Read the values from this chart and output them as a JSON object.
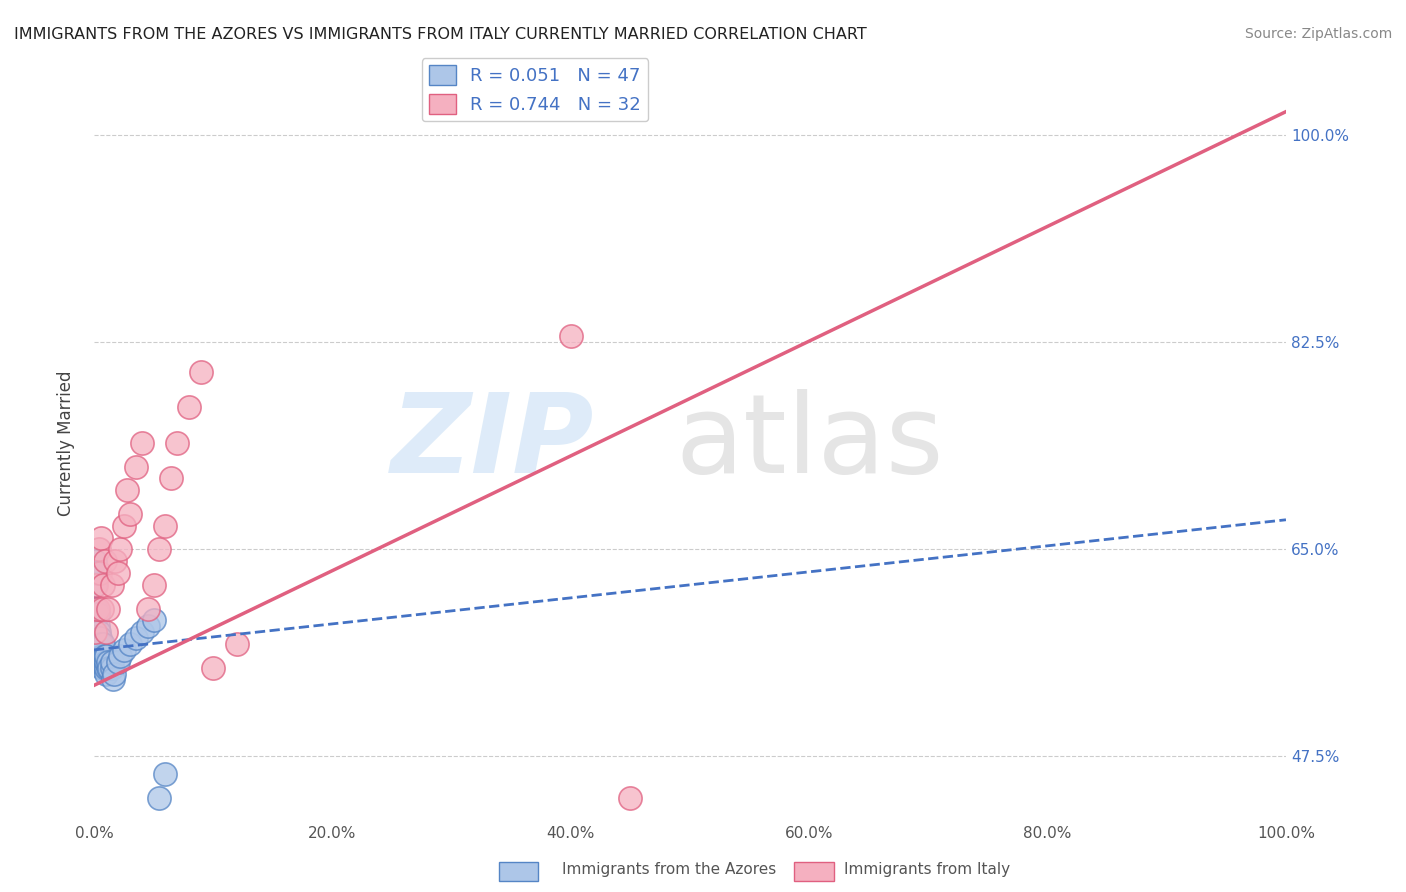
{
  "title": "IMMIGRANTS FROM THE AZORES VS IMMIGRANTS FROM ITALY CURRENTLY MARRIED CORRELATION CHART",
  "source": "Source: ZipAtlas.com",
  "ylabel": "Currently Married",
  "legend_r1": "R = 0.051",
  "legend_n1": "N = 47",
  "legend_r2": "R = 0.744",
  "legend_n2": "N = 32",
  "color_azores_fill": "#adc6e8",
  "color_azores_edge": "#5585c5",
  "color_italy_fill": "#f5b0c0",
  "color_italy_edge": "#e06080",
  "color_azores_line": "#4472c4",
  "color_italy_line": "#e06080",
  "color_text_blue": "#4472c4",
  "color_grid": "#cccccc",
  "xlim": [
    0.0,
    1.0
  ],
  "ylim": [
    0.42,
    1.06
  ],
  "yticks": [
    0.475,
    0.65,
    0.825,
    1.0
  ],
  "ytick_labels": [
    "47.5%",
    "65.0%",
    "82.5%",
    "100.0%"
  ],
  "xtick_labels": [
    "0.0%",
    "20.0%",
    "40.0%",
    "60.0%",
    "80.0%",
    "100.0%"
  ],
  "xticks": [
    0.0,
    0.2,
    0.4,
    0.6,
    0.8,
    1.0
  ],
  "bottom_labels": [
    "Immigrants from the Azores",
    "Immigrants from Italy"
  ],
  "azores_trend": [
    0.0,
    1.0,
    0.565,
    0.675
  ],
  "italy_trend": [
    0.0,
    1.0,
    0.535,
    1.02
  ],
  "azores_x": [
    0.001,
    0.001,
    0.001,
    0.002,
    0.002,
    0.002,
    0.003,
    0.003,
    0.003,
    0.003,
    0.004,
    0.004,
    0.004,
    0.005,
    0.005,
    0.005,
    0.006,
    0.006,
    0.006,
    0.007,
    0.007,
    0.008,
    0.008,
    0.008,
    0.009,
    0.009,
    0.01,
    0.01,
    0.01,
    0.01,
    0.012,
    0.012,
    0.013,
    0.015,
    0.015,
    0.016,
    0.017,
    0.02,
    0.022,
    0.025,
    0.03,
    0.035,
    0.04,
    0.045,
    0.05,
    0.055,
    0.06
  ],
  "azores_y": [
    0.595,
    0.62,
    0.64,
    0.58,
    0.6,
    0.63,
    0.565,
    0.575,
    0.585,
    0.595,
    0.56,
    0.57,
    0.58,
    0.555,
    0.565,
    0.575,
    0.555,
    0.56,
    0.57,
    0.55,
    0.56,
    0.555,
    0.56,
    0.57,
    0.55,
    0.56,
    0.545,
    0.55,
    0.555,
    0.56,
    0.55,
    0.555,
    0.55,
    0.55,
    0.555,
    0.54,
    0.545,
    0.555,
    0.56,
    0.565,
    0.57,
    0.575,
    0.58,
    0.585,
    0.59,
    0.44,
    0.46
  ],
  "italy_x": [
    0.001,
    0.002,
    0.003,
    0.004,
    0.005,
    0.006,
    0.007,
    0.008,
    0.009,
    0.01,
    0.012,
    0.015,
    0.018,
    0.02,
    0.022,
    0.025,
    0.028,
    0.03,
    0.035,
    0.04,
    0.045,
    0.05,
    0.055,
    0.06,
    0.065,
    0.07,
    0.08,
    0.09,
    0.1,
    0.12,
    0.4,
    0.45
  ],
  "italy_y": [
    0.58,
    0.62,
    0.6,
    0.65,
    0.63,
    0.66,
    0.6,
    0.62,
    0.64,
    0.58,
    0.6,
    0.62,
    0.64,
    0.63,
    0.65,
    0.67,
    0.7,
    0.68,
    0.72,
    0.74,
    0.6,
    0.62,
    0.65,
    0.67,
    0.71,
    0.74,
    0.77,
    0.8,
    0.55,
    0.57,
    0.83,
    0.44
  ]
}
